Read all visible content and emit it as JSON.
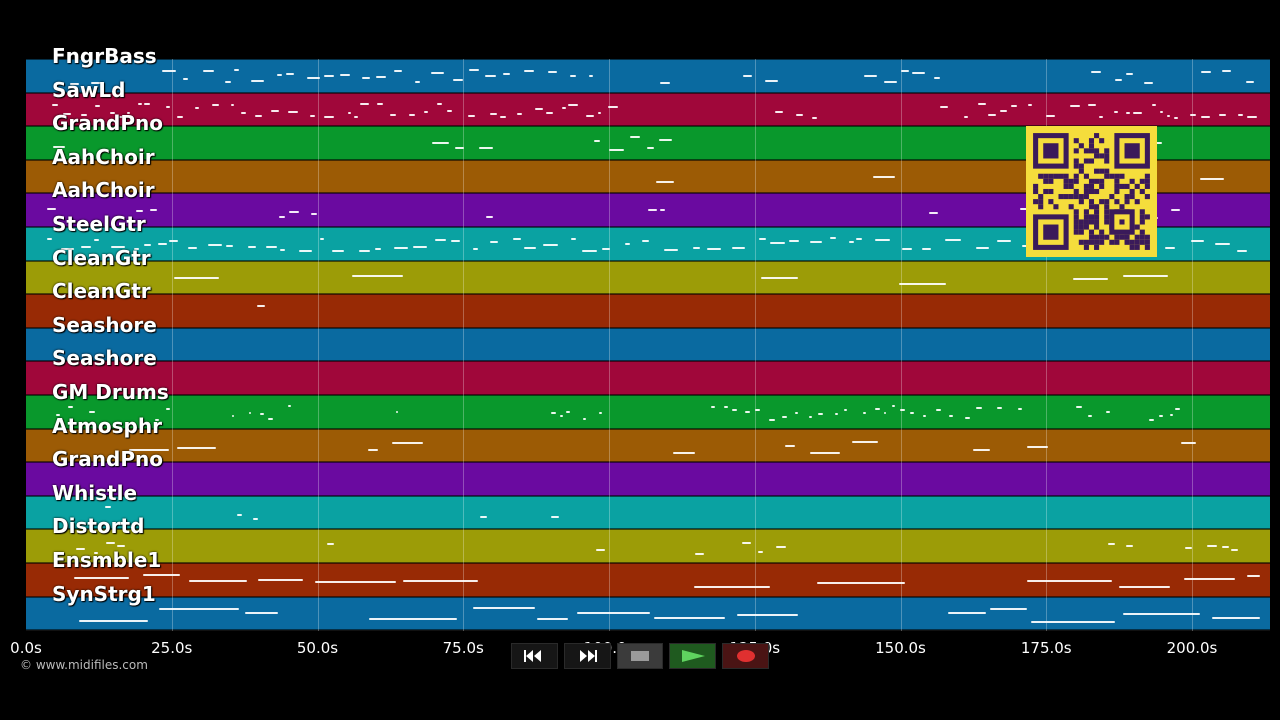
{
  "tracks": [
    {
      "name": "FngrBass",
      "color": "#0a6aa0"
    },
    {
      "name": "SawLd",
      "color": "#a0073a"
    },
    {
      "name": "GrandPno",
      "color": "#09982c"
    },
    {
      "name": "AahChoir",
      "color": "#9c5b05"
    },
    {
      "name": "AahChoir",
      "color": "#6a0aa0"
    },
    {
      "name": "SteelGtr",
      "color": "#0aa2a2"
    },
    {
      "name": "CleanGtr",
      "color": "#9c9c07"
    },
    {
      "name": "CleanGtr",
      "color": "#982a05"
    },
    {
      "name": "Seashore",
      "color": "#0a6aa0"
    },
    {
      "name": "Seashore",
      "color": "#a0073a"
    },
    {
      "name": "GM Drums",
      "color": "#09982c"
    },
    {
      "name": "Atmosphr",
      "color": "#9c5b05"
    },
    {
      "name": "GrandPno",
      "color": "#6a0aa0"
    },
    {
      "name": "Whistle",
      "color": "#0aa2a2"
    },
    {
      "name": "Distortd",
      "color": "#9c9c07"
    },
    {
      "name": "Ensmble1",
      "color": "#982a05"
    },
    {
      "name": "SynStrg1",
      "color": "#0a6aa0"
    }
  ],
  "timeline": {
    "ticks": [
      "0.0s",
      "25.0s",
      "50.0s",
      "75.0s",
      "100.0s",
      "125.0s",
      "150.0s",
      "175.0s",
      "200.0s"
    ],
    "tick_seconds": [
      0,
      25,
      50,
      75,
      100,
      125,
      150,
      175,
      200
    ],
    "max_seconds": 214
  },
  "credit": "© www.midifiles.com",
  "transport": {
    "rewind_icon": "rewind-icon",
    "forward_icon": "fast-forward-icon",
    "stop_icon": "stop-icon",
    "play_icon": "play-icon",
    "record_icon": "record-icon"
  },
  "qr_icon": "qr-code-icon"
}
